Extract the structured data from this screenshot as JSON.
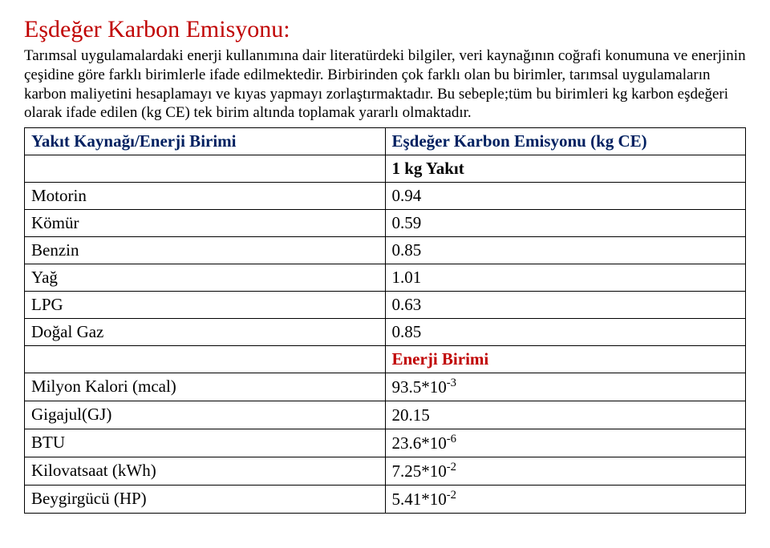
{
  "title": "Eşdeğer Karbon Emisyonu:",
  "paragraph": "Tarımsal uygulamalardaki enerji kullanımına dair literatürdeki bilgiler, veri kaynağının coğrafi konumuna ve enerjinin çeşidine göre farklı birimlerle ifade  edilmektedir. Birbirinden çok farklı olan bu birimler, tarımsal uygulamaların karbon maliyetini hesaplamayı ve kıyas yapmayı zorlaştırmaktadır. Bu sebeple;tüm bu birimleri kg karbon eşdeğeri olarak ifade edilen (kg CE) tek birim altında toplamak yararlı olmaktadır.",
  "table": {
    "header_left": "Yakıt Kaynağı/Enerji Birimi",
    "header_right": "Eşdeğer Karbon Emisyonu (kg CE)",
    "sub1": "1 kg Yakıt",
    "rows1": [
      {
        "label": "Motorin",
        "value": "0.94"
      },
      {
        "label": "Kömür",
        "value": "0.59"
      },
      {
        "label": "Benzin",
        "value": "0.85"
      },
      {
        "label": "Yağ",
        "value": "1.01"
      },
      {
        "label": "LPG",
        "value": "0.63"
      },
      {
        "label": "Doğal Gaz",
        "value": "0.85"
      }
    ],
    "sub2": "Enerji Birimi",
    "rows2": [
      {
        "label": "Milyon Kalori (mcal)",
        "value_base": "93.5*10",
        "value_exp": "-3"
      },
      {
        "label": "Gigajul(GJ)",
        "value_base": "20.15",
        "value_exp": ""
      },
      {
        "label": "BTU",
        "value_base": "23.6*10",
        "value_exp": "-6"
      },
      {
        "label": "Kilovatsaat (kWh)",
        "value_base": "7.25*10",
        "value_exp": "-2"
      },
      {
        "label": "Beygirgücü (HP)",
        "value_base": "5.41*10",
        "value_exp": "-2"
      }
    ]
  },
  "colors": {
    "title": "#c00000",
    "header": "#002060",
    "text": "#000000",
    "subheader_red": "#c00000"
  }
}
